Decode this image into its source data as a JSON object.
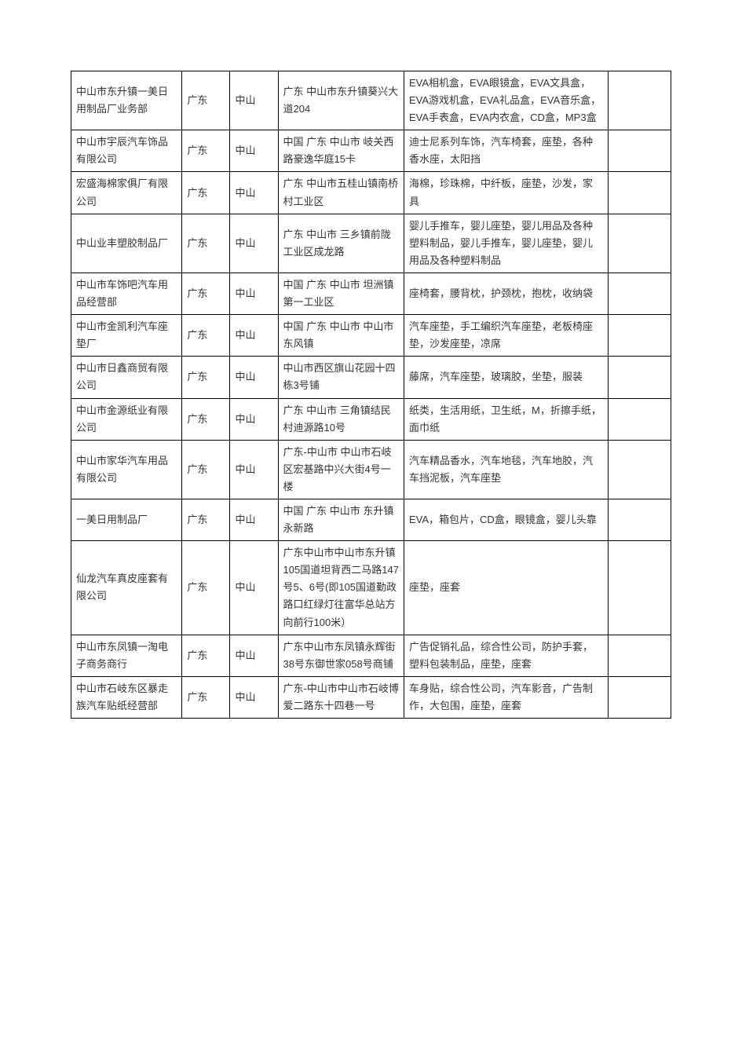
{
  "table": {
    "columns": {
      "widths": [
        "18.5%",
        "8%",
        "8%",
        "21%",
        "34%",
        "10.5%"
      ]
    },
    "styling": {
      "border_color": "#000000",
      "text_color": "#333333",
      "font_size": 13,
      "line_height": 1.7,
      "background_color": "#ffffff",
      "cell_padding": "4px 6px"
    },
    "rows": [
      {
        "company": "中山市东升镇一美日用制品厂业务部",
        "province": "广东",
        "city": "中山",
        "address": "广东 中山市东升镇葵兴大道204",
        "products": "EVA相机盒，EVA眼镜盒，EVA文具盒，EVA游戏机盒，EVA礼品盒，EVA音乐盒，EVA手表盒，EVA内衣盒，CD盒，MP3盒",
        "extra": ""
      },
      {
        "company": "中山市宇辰汽车饰品有限公司",
        "province": "广东",
        "city": "中山",
        "address": "中国 广东 中山市 岐关西路豪逸华庭15卡",
        "products": "迪士尼系列车饰，汽车椅套，座垫，各种香水座，太阳挡",
        "extra": ""
      },
      {
        "company": "宏盛海棉家俱厂有限公司",
        "province": "广东",
        "city": "中山",
        "address": "广东 中山市五桂山镇南桥村工业区",
        "products": "海棉，珍珠棉，中纤板，座垫，沙发，家具",
        "extra": ""
      },
      {
        "company": "中山业丰塑胶制品厂",
        "province": "广东",
        "city": "中山",
        "address": "广东 中山市 三乡镇前陇工业区成龙路",
        "products": "婴儿手推车，婴儿座垫，婴儿用品及各种塑料制品，婴儿手推车，婴儿座垫，婴儿用品及各种塑料制品",
        "extra": ""
      },
      {
        "company": "中山市车饰吧汽车用品经营部",
        "province": "广东",
        "city": "中山",
        "address": "中国 广东 中山市 坦洲镇第一工业区",
        "products": "座椅套，腰背枕，护颈枕，抱枕，收纳袋",
        "extra": ""
      },
      {
        "company": "中山市金凯利汽车座垫厂",
        "province": "广东",
        "city": "中山",
        "address": "中国 广东 中山市 中山市东风镇",
        "products": "汽车座垫，手工编织汽车座垫，老板椅座垫，沙发座垫，凉席",
        "extra": ""
      },
      {
        "company": "中山市日鑫商贸有限公司",
        "province": "广东",
        "city": "中山",
        "address": "中山市西区旗山花园十四栋3号铺",
        "products": "藤席，汽车座垫，玻璃胶，坐垫，服装",
        "extra": ""
      },
      {
        "company": "中山市金源纸业有限公司",
        "province": "广东",
        "city": "中山",
        "address": "广东 中山市 三角镇结民村迪源路10号",
        "products": "纸类，生活用纸，卫生纸，M，折擦手纸，面巾纸",
        "extra": ""
      },
      {
        "company": "中山市家华汽车用品有限公司",
        "province": "广东",
        "city": "中山",
        "address": "广东-中山市 中山市石岐区宏基路中兴大街4号一楼",
        "products": "汽车精品香水，汽车地毯，汽车地胶，汽车挡泥板，汽车座垫",
        "extra": ""
      },
      {
        "company": "一美日用制品厂",
        "province": "广东",
        "city": "中山",
        "address": "中国 广东 中山市 东升镇永新路",
        "products": "EVA，箱包片，CD盒，眼镜盒，婴儿头靠",
        "extra": ""
      },
      {
        "company": "仙龙汽车真皮座套有限公司",
        "province": "广东",
        "city": "中山",
        "address": "广东中山市中山市东升镇105国道坦背西二马路147号5、6号(即105国道勤政路口红绿灯往富华总站方向前行100米）",
        "products": "座垫，座套",
        "extra": ""
      },
      {
        "company": "中山市东凤镇一淘电子商务商行",
        "province": "广东",
        "city": "中山",
        "address": "广东中山市东凤镇永辉街38号东御世家058号商铺",
        "products": "广告促销礼品，综合性公司，防护手套，塑料包装制品，座垫，座套",
        "extra": ""
      },
      {
        "company": "中山市石岐东区暴走族汽车贴纸经营部",
        "province": "广东",
        "city": "中山",
        "address": "广东-中山市中山市石岐博爱二路东十四巷一号",
        "products": "车身贴，综合性公司，汽车影音，广告制作，大包围，座垫，座套",
        "extra": ""
      }
    ]
  }
}
